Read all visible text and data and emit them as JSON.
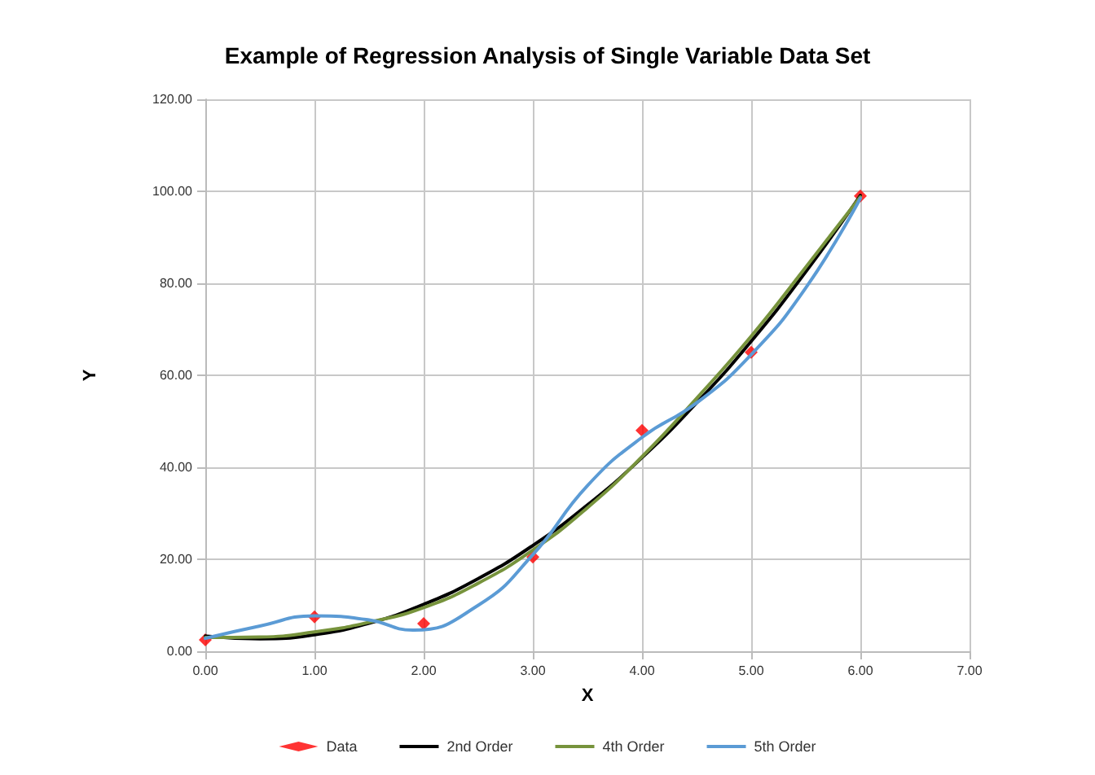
{
  "chart_data": {
    "type": "scatter",
    "title": "Example of Regression Analysis of Single Variable Data Set",
    "xlabel": "X",
    "ylabel": "Y",
    "xlim": [
      0,
      7
    ],
    "xticks": [
      {
        "value": 0,
        "label": "0.00"
      },
      {
        "value": 1,
        "label": "1.00"
      },
      {
        "value": 2,
        "label": "2.00"
      },
      {
        "value": 3,
        "label": "3.00"
      },
      {
        "value": 4,
        "label": "4.00"
      },
      {
        "value": 5,
        "label": "5.00"
      },
      {
        "value": 6,
        "label": "6.00"
      },
      {
        "value": 7,
        "label": "7.00"
      }
    ],
    "ylim": [
      0,
      120
    ],
    "yticks": [
      {
        "value": 0,
        "label": "0.00"
      },
      {
        "value": 20,
        "label": "20.00"
      },
      {
        "value": 40,
        "label": "40.00"
      },
      {
        "value": 60,
        "label": "60.00"
      },
      {
        "value": 80,
        "label": "80.00"
      },
      {
        "value": 100,
        "label": "100.00"
      },
      {
        "value": 120,
        "label": "120.00"
      }
    ],
    "grid": true,
    "legend": "bottom",
    "series": [
      {
        "name": "Data",
        "marker": "diamond",
        "color": "#ff0000",
        "x": [
          0,
          1,
          2,
          3,
          4,
          5,
          6
        ],
        "values": [
          2.5,
          7.5,
          6,
          20.5,
          48,
          65,
          99
        ]
      },
      {
        "name": "2nd Order",
        "type": "line",
        "marker": "none",
        "color": "#000000",
        "x": [
          0,
          0.5,
          1,
          1.5,
          2,
          2.5,
          3,
          3.5,
          4,
          4.5,
          5,
          5.5,
          6
        ],
        "values": [
          3.3,
          2.7,
          3.6,
          6.1,
          10.2,
          15.8,
          23.0,
          31.8,
          42.1,
          54.0,
          67.4,
          82.5,
          99.1
        ]
      },
      {
        "name": "4th Order",
        "type": "line",
        "marker": "none",
        "color": "#77933c",
        "x": [
          0,
          0.5,
          1,
          1.5,
          2,
          2.5,
          3,
          3.5,
          4,
          4.5,
          5,
          5.5,
          6
        ],
        "values": [
          3.0,
          3.1,
          4.2,
          6.3,
          9.5,
          14.8,
          22.0,
          31.2,
          42.3,
          55.0,
          68.5,
          83.5,
          98.8
        ]
      },
      {
        "name": "5th Order",
        "type": "line",
        "marker": "none",
        "color": "#5b9bd5",
        "x": [
          0,
          0.5,
          1,
          1.5,
          1.9,
          2.5,
          3,
          3.5,
          4,
          4.5,
          5,
          5.5,
          6
        ],
        "values": [
          2.8,
          5.5,
          7.7,
          6.8,
          4.6,
          10,
          21,
          36,
          46.5,
          54,
          64.5,
          79,
          98.5
        ]
      }
    ]
  }
}
